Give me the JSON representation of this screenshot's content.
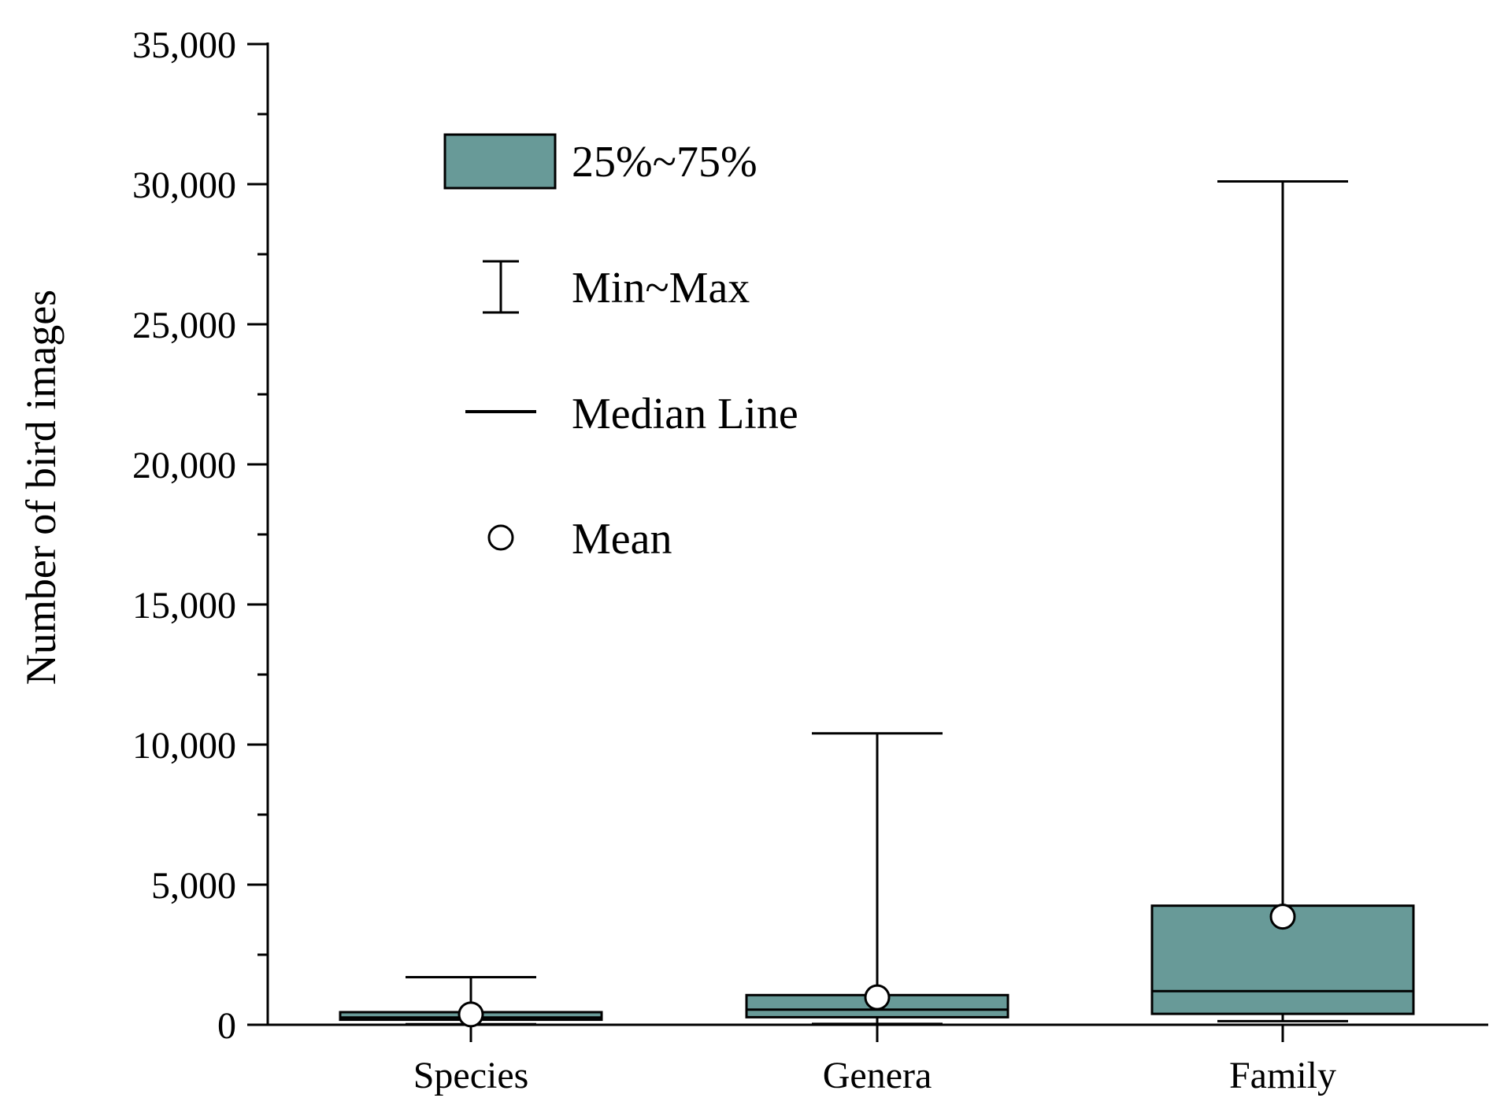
{
  "chart_data": {
    "type": "box",
    "title": "",
    "xlabel": "",
    "ylabel": "Number of bird images",
    "ylim": [
      0,
      35000
    ],
    "yticks": [
      0,
      5000,
      10000,
      15000,
      20000,
      25000,
      30000,
      35000
    ],
    "ytick_labels": [
      "0",
      "5,000",
      "10,000",
      "15,000",
      "20,000",
      "25,000",
      "30,000",
      "35,000"
    ],
    "y_minor_step": 2500,
    "categories": [
      "Species",
      "Genera",
      "Family"
    ],
    "series": [
      {
        "name": "Species",
        "min": 20,
        "q1": 180,
        "median": 260,
        "q3": 450,
        "max": 1700,
        "mean": 370
      },
      {
        "name": "Genera",
        "min": 30,
        "q1": 270,
        "median": 540,
        "q3": 1060,
        "max": 10400,
        "mean": 980
      },
      {
        "name": "Family",
        "min": 130,
        "q1": 390,
        "median": 1200,
        "q3": 4250,
        "max": 30100,
        "mean": 3860
      }
    ],
    "legend": {
      "position": "top-left",
      "items": [
        {
          "key": "box",
          "label": "25%~75%"
        },
        {
          "key": "whisker",
          "label": "Min~Max"
        },
        {
          "key": "median",
          "label": "Median Line"
        },
        {
          "key": "mean",
          "label": "Mean"
        }
      ]
    },
    "colors": {
      "box_fill": "#689a98",
      "line": "#000000",
      "mean_fill": "#ffffff"
    }
  }
}
